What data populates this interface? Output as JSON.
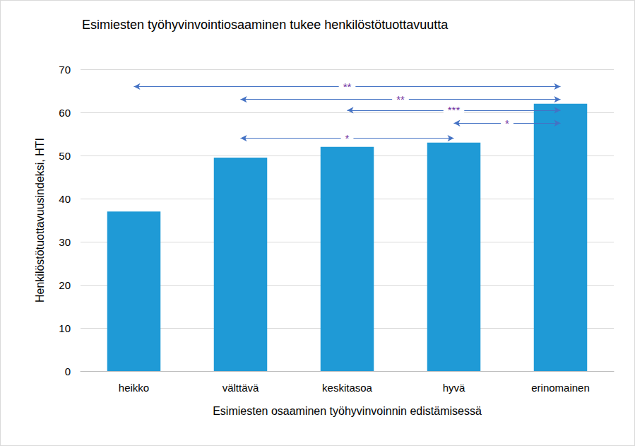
{
  "chart_data": {
    "type": "bar",
    "title": "Esimiesten työhyvinvointiosaaminen tukee henkilöstötuottavuutta",
    "x_label": "Esimiesten osaaminen työhyvinvoinnin edistämisessä",
    "y_label": "Henkilöstötuottavuusindeksi, HTI",
    "categories": [
      "heikko",
      "välttävä",
      "keskitasoa",
      "hyvä",
      "erinomainen"
    ],
    "values": [
      37,
      49.5,
      52,
      53,
      62
    ],
    "color": "#1f9ad6",
    "ylim": [
      0,
      70
    ],
    "yticks": [
      0,
      10,
      20,
      30,
      40,
      50,
      60,
      70
    ],
    "grid": true,
    "annotations": [
      {
        "from": "heikko",
        "to": "erinomainen",
        "label": "**",
        "y": 66
      },
      {
        "from": "välttävä",
        "to": "erinomainen",
        "label": "**",
        "y": 63
      },
      {
        "from": "keskitasoa",
        "to": "erinomainen",
        "label": "***",
        "y": 60.5
      },
      {
        "from": "hyvä",
        "to": "erinomainen",
        "label": "*",
        "y": 57.5
      },
      {
        "from": "välttävä",
        "to": "hyvä",
        "label": "*",
        "y": 54
      }
    ]
  }
}
